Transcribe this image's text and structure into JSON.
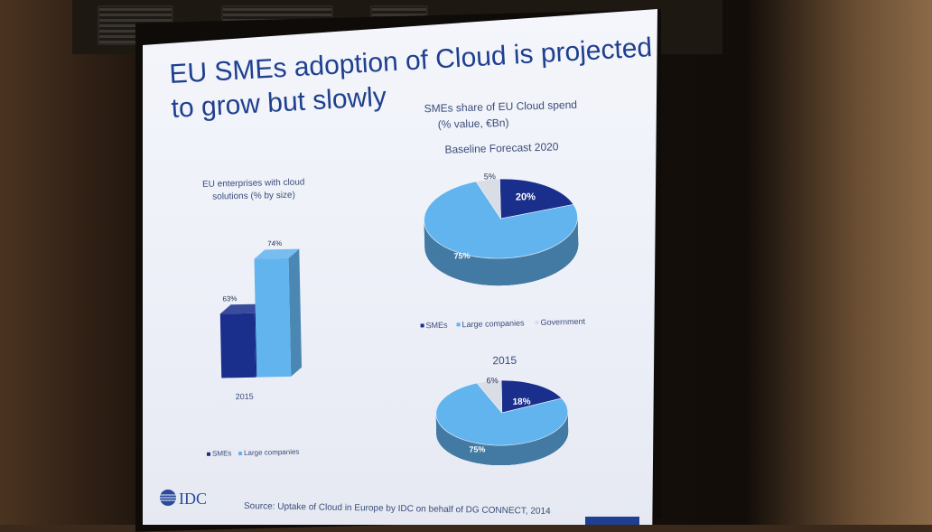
{
  "slide": {
    "title_line1": "EU SMEs adoption of Cloud is projected",
    "title_line2": "to grow but slowly",
    "source": "Source: Uptake of Cloud in Europe by IDC on behalf of DG CONNECT, 2014",
    "logo": "IDC",
    "colors": {
      "smes": "#1a2f8c",
      "large": "#62b4ef",
      "government": "#d9dde6",
      "title": "#1f3f8f"
    }
  },
  "chart_data": [
    {
      "type": "bar",
      "title": "EU enterprises with cloud solutions (% by size)",
      "title_line1": "EU enterprises with cloud",
      "title_line2": "solutions (% by size)",
      "categories": [
        "2015"
      ],
      "series": [
        {
          "name": "SMEs",
          "values": [
            63
          ],
          "label": "63%"
        },
        {
          "name": "Large companies",
          "values": [
            74
          ],
          "label": "74%"
        }
      ],
      "legend": [
        "SMEs",
        "Large companies"
      ],
      "legend_position": "bottom"
    },
    {
      "type": "pie",
      "title_line1": "SMEs share of EU Cloud spend",
      "title_line2": "(% value, €Bn)",
      "subtitle": "Baseline Forecast 2020",
      "slices": [
        {
          "name": "SMEs",
          "value": 20,
          "label": "20%"
        },
        {
          "name": "Large companies",
          "value": 75,
          "label": "75%"
        },
        {
          "name": "Government",
          "value": 5,
          "label": "5%"
        }
      ],
      "legend": [
        "SMEs",
        "Large companies",
        "Government"
      ]
    },
    {
      "type": "pie",
      "subtitle": "2015",
      "slices": [
        {
          "name": "SMEs",
          "value": 18,
          "label": "18%"
        },
        {
          "name": "Large companies",
          "value": 75,
          "label": "75%"
        },
        {
          "name": "Government",
          "value": 6,
          "label": "6%"
        }
      ]
    }
  ]
}
